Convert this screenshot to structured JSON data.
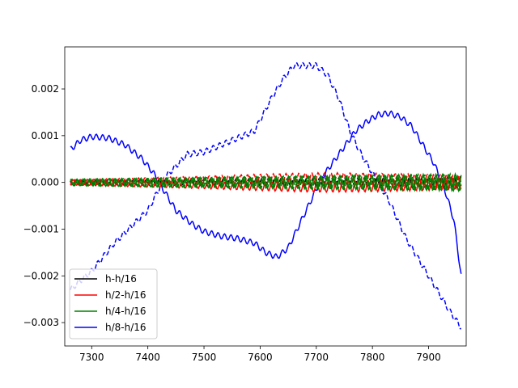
{
  "chart_data": {
    "type": "line",
    "title": "",
    "xlabel": "",
    "ylabel": "",
    "xlim": [
      7252,
      7967
    ],
    "ylim": [
      -0.0035,
      0.0029
    ],
    "x_ticks": [
      7300,
      7400,
      7500,
      7600,
      7700,
      7800,
      7900
    ],
    "x_tick_labels": [
      "7300",
      "7400",
      "7500",
      "7600",
      "7700",
      "7800",
      "7900"
    ],
    "y_ticks": [
      0.002,
      0.001,
      0.0,
      -0.001,
      -0.002,
      -0.003
    ],
    "y_tick_labels": [
      "0.002",
      "0.001",
      "0.000",
      "−0.001",
      "−0.002",
      "−0.003"
    ],
    "grid": false,
    "legend_position": "lower-left",
    "legend": [
      {
        "label": "h-h/16",
        "color": "#000000"
      },
      {
        "label": "h/2-h/16",
        "color": "#ff0000"
      },
      {
        "label": "h/4-h/16",
        "color": "#008000"
      },
      {
        "label": "h/8-h/16",
        "color": "#0000ff"
      }
    ],
    "series": [
      {
        "name": "h/8-h/16",
        "color": "#0000ff",
        "style": "dashed",
        "x": [
          7262,
          7280,
          7300,
          7340,
          7370,
          7400,
          7430,
          7470,
          7500,
          7530,
          7560,
          7590,
          7620,
          7640,
          7660,
          7680,
          7700,
          7720,
          7740,
          7760,
          7780,
          7800,
          7830,
          7860,
          7890,
          7920,
          7940,
          7958
        ],
        "y": [
          -0.0023,
          -0.0021,
          -0.0019,
          -0.0013,
          -0.00095,
          -0.0006,
          0.0001,
          0.0006,
          0.00065,
          0.0008,
          0.00095,
          0.0011,
          0.0018,
          0.0022,
          0.0025,
          0.0025,
          0.0025,
          0.0023,
          0.0018,
          0.0011,
          0.0006,
          0.0002,
          -0.0004,
          -0.0012,
          -0.0018,
          -0.0024,
          -0.0028,
          -0.0031
        ]
      },
      {
        "name": "h/8-h/16",
        "color": "#0000ff",
        "style": "solid",
        "x": [
          7262,
          7280,
          7300,
          7330,
          7360,
          7390,
          7410,
          7430,
          7450,
          7480,
          7500,
          7530,
          7560,
          7590,
          7610,
          7630,
          7650,
          7670,
          7690,
          7710,
          7740,
          7770,
          7790,
          7810,
          7830,
          7850,
          7870,
          7890,
          7910,
          7930,
          7945,
          7958
        ],
        "y": [
          0.0007,
          0.0009,
          0.00098,
          0.00095,
          0.0008,
          0.0005,
          0.0002,
          -0.0002,
          -0.0006,
          -0.0009,
          -0.00105,
          -0.00115,
          -0.0012,
          -0.0013,
          -0.0015,
          -0.0016,
          -0.0014,
          -0.0009,
          -0.0004,
          0.0001,
          0.0006,
          0.0011,
          0.0013,
          0.00145,
          0.00148,
          0.0014,
          0.0012,
          0.0008,
          0.0004,
          -0.0002,
          -0.0008,
          -0.002
        ]
      },
      {
        "name": "h-h/16",
        "color": "#000000",
        "style": "dashed",
        "x": [
          7262,
          7958
        ],
        "y": [
          0.0,
          0.0
        ]
      },
      {
        "name": "h/2-h/16",
        "color": "#ff0000",
        "style": "dashed",
        "x": [
          7262,
          7400,
          7500,
          7600,
          7700,
          7800,
          7900,
          7958
        ],
        "y": [
          0.0,
          3e-05,
          5e-05,
          8e-05,
          0.0001,
          8e-05,
          4e-05,
          0.0
        ]
      },
      {
        "name": "h/2-h/16",
        "color": "#ff0000",
        "style": "solid",
        "x": [
          7262,
          7400,
          7500,
          7600,
          7700,
          7800,
          7900,
          7958
        ],
        "y": [
          0.0,
          -3e-05,
          -5e-05,
          -8e-05,
          -0.0001,
          -8e-05,
          -4e-05,
          0.0
        ]
      },
      {
        "name": "h/4-h/16",
        "color": "#008000",
        "style": "dashed",
        "x": [
          7262,
          7958
        ],
        "y": [
          0.0,
          0.0
        ]
      },
      {
        "name": "h/4-h/16",
        "color": "#008000",
        "style": "solid",
        "x": [
          7262,
          7958
        ],
        "y": [
          0.0,
          0.0
        ]
      }
    ]
  }
}
